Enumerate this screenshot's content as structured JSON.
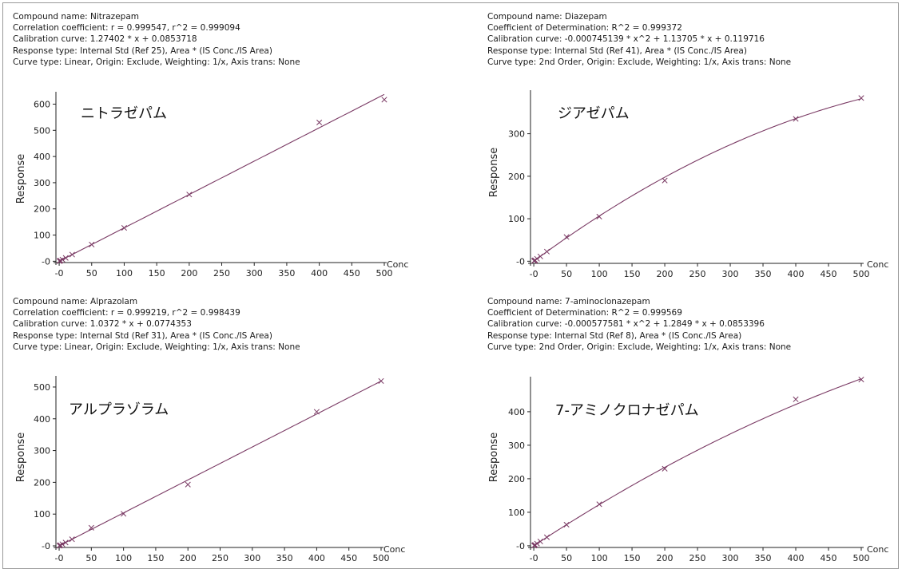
{
  "colors": {
    "curve": "#7a3a64",
    "marker": "#7a3a64",
    "axis": "#222222",
    "border": "#9a9a9a"
  },
  "chart_data": [
    {
      "type": "scatter",
      "info": [
        "Compound name: Nitrazepam",
        "Correlation coefficient: r = 0.999547, r^2 = 0.999094",
        "Calibration curve: 1.27402 * x + 0.0853718",
        "Response type: Internal Std (Ref 25), Area * (IS Conc./IS Area)",
        "Curve type: Linear, Origin: Exclude, Weighting: 1/x, Axis trans: None"
      ],
      "title": "ニトラゼパム",
      "xlabel": "Conc",
      "ylabel": "Response",
      "xlim": [
        -5,
        500
      ],
      "ylim": [
        -5,
        635
      ],
      "xticks": [
        0,
        50,
        100,
        150,
        200,
        250,
        300,
        350,
        400,
        450,
        500
      ],
      "xtick_labels": [
        "-0",
        "50",
        "100",
        "150",
        "200",
        "250",
        "300",
        "350",
        "400",
        "450",
        "500"
      ],
      "yticks": [
        0,
        100,
        200,
        300,
        400,
        500,
        600
      ],
      "ytick_labels": [
        "-0",
        "100",
        "200",
        "300",
        "400",
        "500",
        "600"
      ],
      "fit": {
        "order": 1,
        "a": 0,
        "b": 1.27402,
        "c": 0.0853718
      },
      "points": [
        [
          0.5,
          0.6
        ],
        [
          1,
          1.3
        ],
        [
          2,
          2.5
        ],
        [
          5,
          6.4
        ],
        [
          10,
          12.8
        ],
        [
          20,
          25.5
        ],
        [
          50,
          63.7
        ],
        [
          100,
          127.4
        ],
        [
          200,
          254.8
        ],
        [
          400,
          530
        ],
        [
          500,
          617
        ]
      ]
    },
    {
      "type": "scatter",
      "info": [
        "Compound name: Diazepam",
        "Coefficient of Determination: R^2 = 0.999372",
        "Calibration curve: -0.000745139 * x^2 + 1.13705 * x + 0.119716",
        "Response type: Internal Std (Ref 41), Area * (IS Conc./IS Area)",
        "Curve type: 2nd Order, Origin: Exclude, Weighting: 1/x, Axis trans: None"
      ],
      "title": "ジアゼパム",
      "xlabel": "Conc",
      "ylabel": "Response",
      "xlim": [
        -5,
        500
      ],
      "ylim": [
        -5,
        395
      ],
      "xticks": [
        0,
        50,
        100,
        150,
        200,
        250,
        300,
        350,
        400,
        450,
        500
      ],
      "xtick_labels": [
        "-0",
        "50",
        "100",
        "150",
        "200",
        "250",
        "300",
        "350",
        "400",
        "450",
        "500"
      ],
      "yticks": [
        0,
        100,
        200,
        300
      ],
      "ytick_labels": [
        "-0",
        "100",
        "200",
        "300"
      ],
      "fit": {
        "order": 2,
        "a": -0.000745139,
        "b": 1.13705,
        "c": 0.119716
      },
      "points": [
        [
          0.5,
          0.7
        ],
        [
          1,
          1.3
        ],
        [
          2,
          2.4
        ],
        [
          5,
          5.8
        ],
        [
          10,
          11.4
        ],
        [
          20,
          22.7
        ],
        [
          50,
          57
        ],
        [
          100,
          105
        ],
        [
          200,
          190
        ],
        [
          400,
          335
        ],
        [
          500,
          384
        ]
      ]
    },
    {
      "type": "scatter",
      "info": [
        "Compound name: Alprazolam",
        "Correlation coefficient: r = 0.999219, r^2 = 0.998439",
        "Calibration curve: 1.0372 * x + 0.0774353",
        "Response type: Internal Std (Ref 31), Area * (IS Conc./IS Area)",
        "Curve type: Linear, Origin: Exclude, Weighting: 1/x, Axis trans: None"
      ],
      "title": "アルプラゾラム",
      "xlabel": "Conc",
      "ylabel": "Response",
      "xlim": [
        -5,
        500
      ],
      "ylim": [
        -5,
        525
      ],
      "xticks": [
        0,
        50,
        100,
        150,
        200,
        250,
        300,
        350,
        400,
        450,
        500
      ],
      "xtick_labels": [
        "-0",
        "50",
        "100",
        "150",
        "200",
        "250",
        "300",
        "350",
        "400",
        "450",
        "500"
      ],
      "yticks": [
        0,
        100,
        200,
        300,
        400,
        500
      ],
      "ytick_labels": [
        "-0",
        "100",
        "200",
        "300",
        "400",
        "500"
      ],
      "fit": {
        "order": 1,
        "a": 0,
        "b": 1.0372,
        "c": 0.0774353
      },
      "points": [
        [
          0.5,
          0.6
        ],
        [
          1,
          1.1
        ],
        [
          2,
          2.1
        ],
        [
          5,
          5.3
        ],
        [
          10,
          10.5
        ],
        [
          20,
          20.8
        ],
        [
          50,
          57
        ],
        [
          100,
          101
        ],
        [
          200,
          193
        ],
        [
          400,
          422
        ],
        [
          500,
          519
        ]
      ]
    },
    {
      "type": "scatter",
      "info": [
        "Compound name: 7-aminoclonazepam",
        "Coefficient of Determination: R^2 = 0.999569",
        "Calibration curve: -0.000577581 * x^2 + 1.2849 * x + 0.0853396",
        "Response type: Internal Std (Ref 8), Area * (IS Conc./IS Area)",
        "Curve type: 2nd Order, Origin: Exclude, Weighting: 1/x, Axis trans: None"
      ],
      "title": "7-アミノクロナゼパム",
      "xlabel": "Conc",
      "ylabel": "Response",
      "xlim": [
        -5,
        500
      ],
      "ylim": [
        -5,
        495
      ],
      "xticks": [
        0,
        50,
        100,
        150,
        200,
        250,
        300,
        350,
        400,
        450,
        500
      ],
      "xtick_labels": [
        "-0",
        "50",
        "100",
        "150",
        "200",
        "250",
        "300",
        "350",
        "400",
        "450",
        "500"
      ],
      "yticks": [
        0,
        100,
        200,
        300,
        400
      ],
      "ytick_labels": [
        "-0",
        "100",
        "200",
        "300",
        "400"
      ],
      "fit": {
        "order": 2,
        "a": -0.000577581,
        "b": 1.2849,
        "c": 0.0853396
      },
      "points": [
        [
          0.5,
          0.7
        ],
        [
          1,
          1.4
        ],
        [
          2,
          2.7
        ],
        [
          5,
          6.5
        ],
        [
          10,
          12.9
        ],
        [
          20,
          25.5
        ],
        [
          50,
          63
        ],
        [
          100,
          124
        ],
        [
          200,
          230
        ],
        [
          400,
          437
        ],
        [
          500,
          496
        ]
      ]
    }
  ]
}
